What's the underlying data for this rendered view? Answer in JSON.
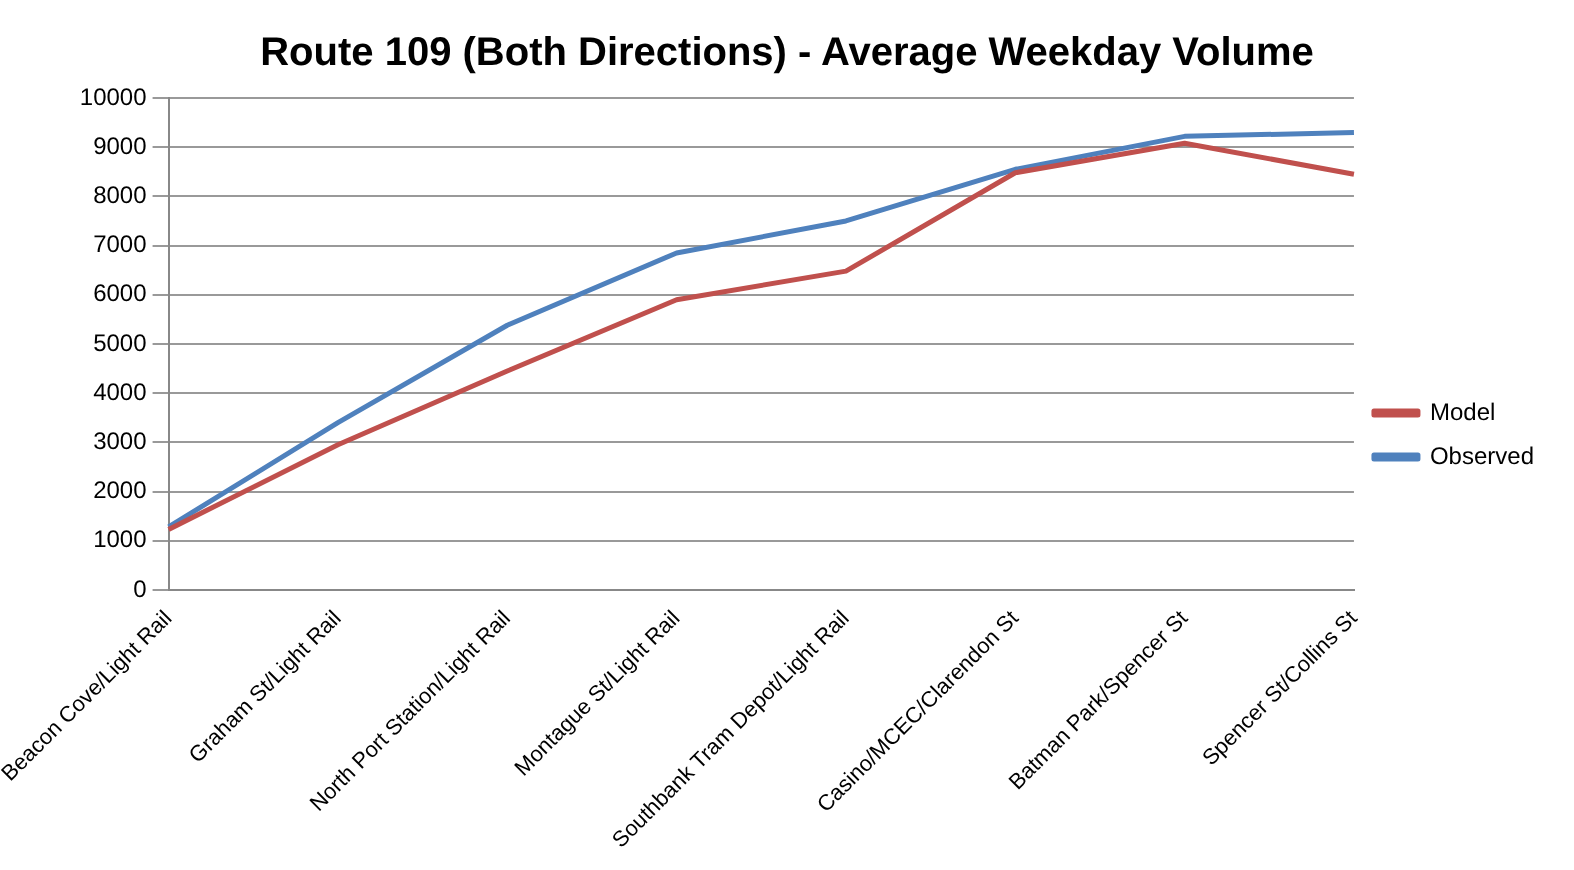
{
  "chart_data": {
    "type": "line",
    "title": "Route 109 (Both Directions) - Average Weekday Volume",
    "categories": [
      "Beacon Cove/Light Rail",
      "Graham St/Light Rail",
      "North Port Station/Light Rail",
      "Montague St/Light Rail",
      "Southbank Tram Depot/Light Rail",
      "Casino/MCEC/Clarendon St",
      "Batman Park/Spencer St",
      "Spencer St/Collins St"
    ],
    "series": [
      {
        "name": "Model",
        "color": "#c0504d",
        "values": [
          1230,
          2950,
          4450,
          5900,
          6480,
          8480,
          9080,
          8450
        ]
      },
      {
        "name": "Observed",
        "color": "#4f81bd",
        "values": [
          1280,
          3400,
          5380,
          6850,
          7500,
          8550,
          9220,
          9300
        ]
      }
    ],
    "ylim": [
      0,
      10000
    ],
    "yticks": [
      0,
      1000,
      2000,
      3000,
      4000,
      5000,
      6000,
      7000,
      8000,
      9000,
      10000
    ],
    "grid": "y",
    "legend": "right",
    "marker": "none",
    "line_style": "solid"
  }
}
